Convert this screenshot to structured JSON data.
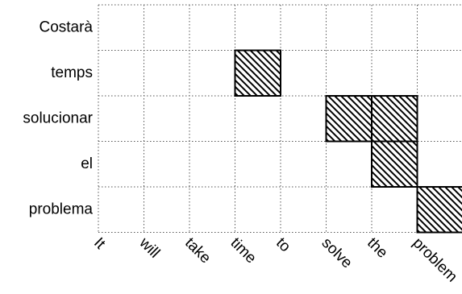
{
  "chart_data": {
    "type": "heatmap",
    "title": "",
    "xlabel": "",
    "ylabel": "",
    "x_categories": [
      "It",
      "will",
      "take",
      "time",
      "to",
      "solve",
      "the",
      "problem"
    ],
    "y_categories": [
      "Costarà",
      "temps",
      "solucionar",
      "el",
      "problema"
    ],
    "alignments": [
      {
        "x": "time",
        "y": "temps"
      },
      {
        "x": "solve",
        "y": "solucionar"
      },
      {
        "x": "the",
        "y": "solucionar"
      },
      {
        "x": "the",
        "y": "el"
      },
      {
        "x": "problem",
        "y": "problema"
      }
    ],
    "grid": true,
    "grid_style": "dotted",
    "cell_fill": "diagonal-hatch",
    "colors": {
      "hatch": "#000000",
      "grid": "#555555",
      "background": "#ffffff"
    }
  }
}
